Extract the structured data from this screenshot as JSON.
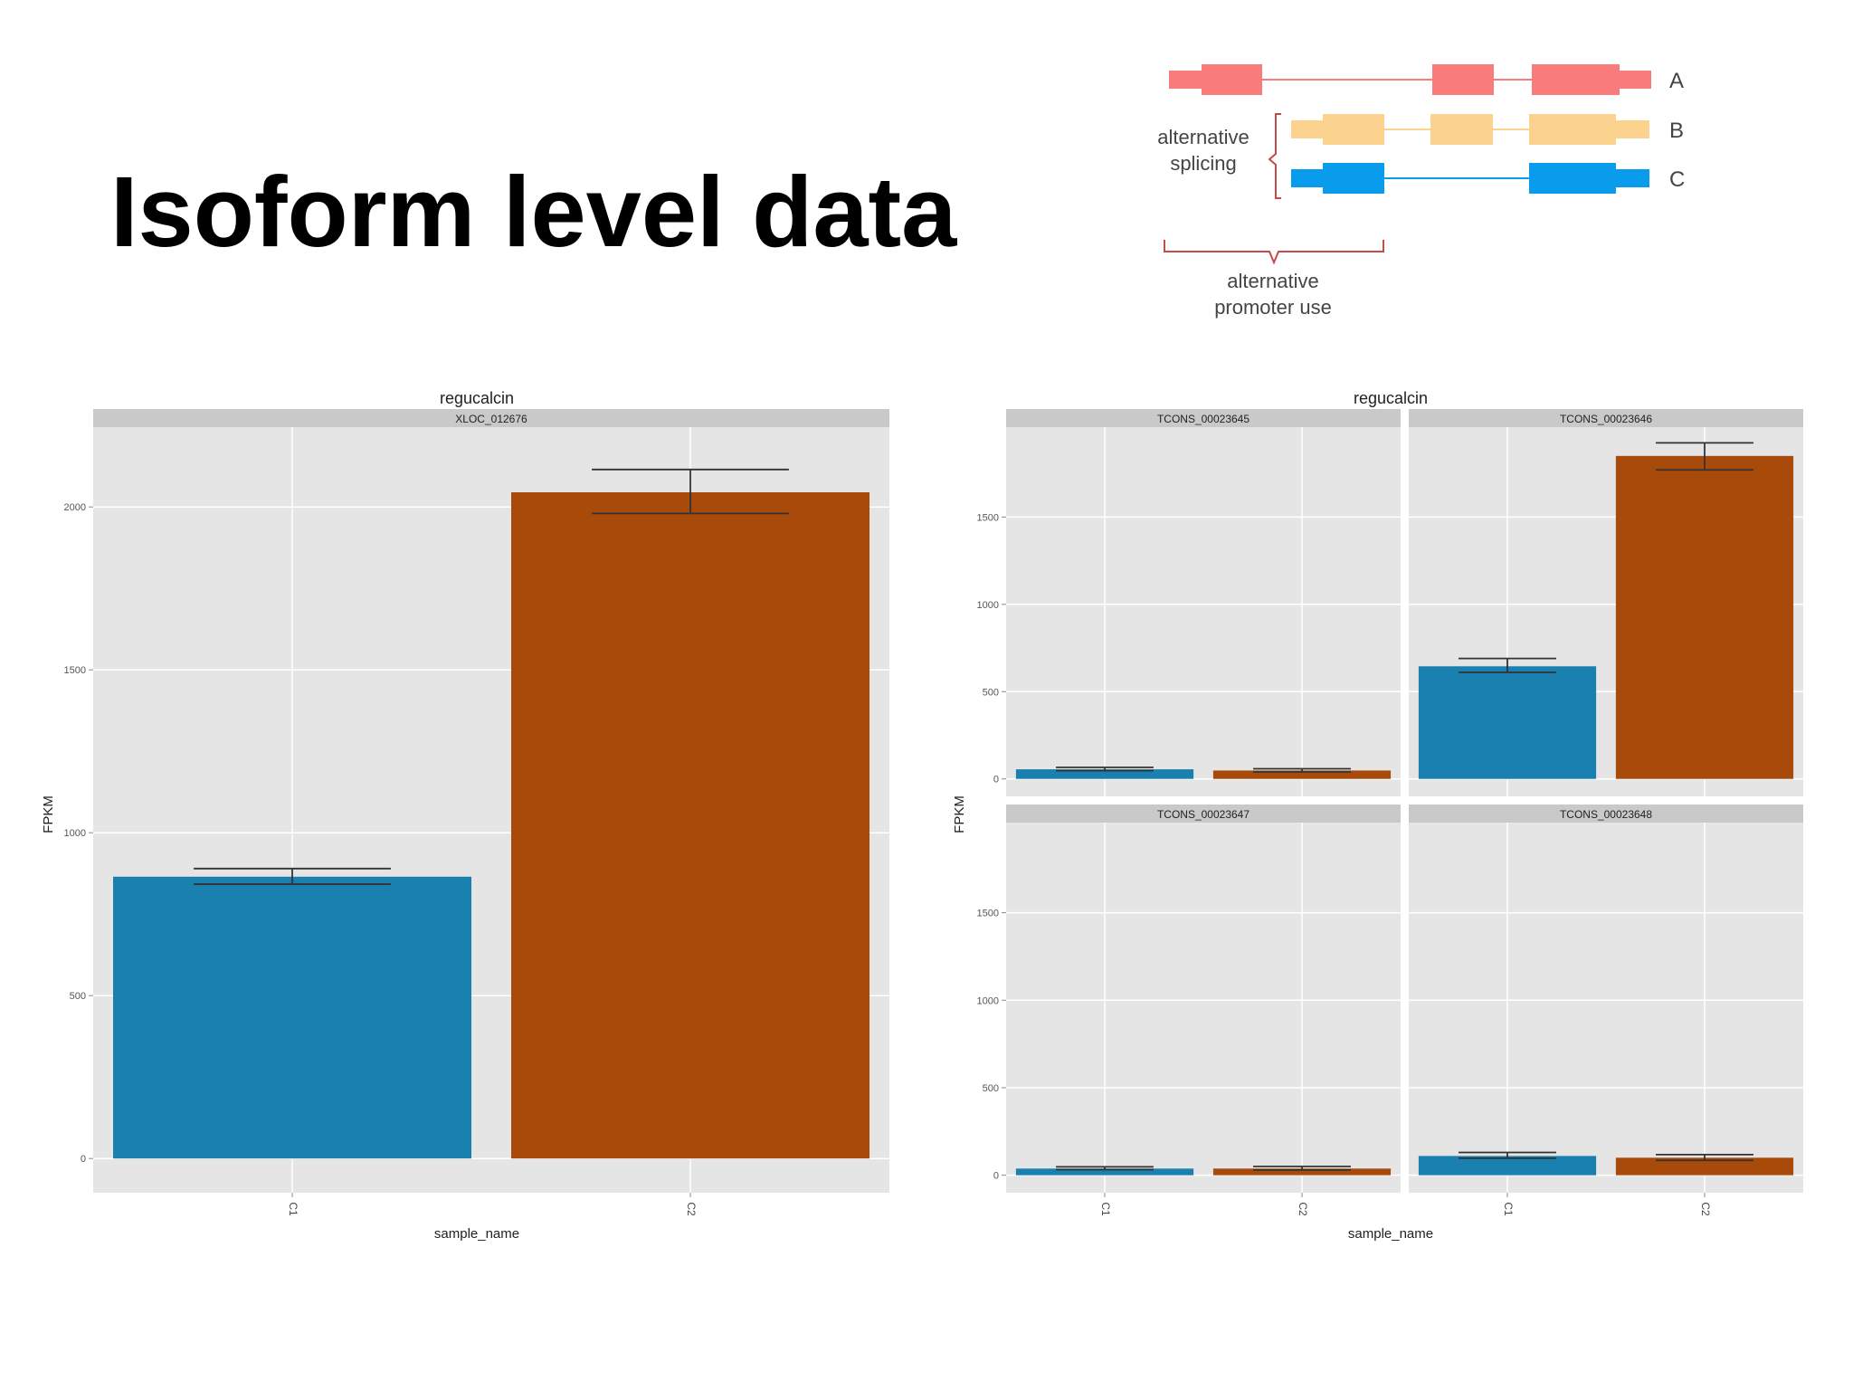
{
  "slide": {
    "title": "Isoform level data"
  },
  "diagram": {
    "isoform_labels": [
      "A",
      "B",
      "C"
    ],
    "splicing_label": [
      "alternative",
      "splicing"
    ],
    "promoter_label": [
      "alternative",
      "promoter use"
    ],
    "colors": {
      "A": "#f97b7b",
      "B": "#fbd38f",
      "C": "#0a9cec",
      "bracket": "#c94848"
    }
  },
  "colors": {
    "C1": "#1980b0",
    "C2": "#a84a09",
    "panel_bg": "#e5e5e5",
    "strip_bg": "#c9c9c9",
    "grid": "#ffffff",
    "error_bar": "#333333"
  },
  "chart_data": [
    {
      "type": "bar",
      "title": "regucalcin",
      "xlabel": "sample_name",
      "ylabel": "FPKM",
      "ylim": [
        -105,
        2245
      ],
      "yticks": [
        0,
        500,
        1000,
        1500,
        2000
      ],
      "grid": true,
      "panels": [
        {
          "strip": "XLOC_012676",
          "categories": [
            "C1",
            "C2"
          ],
          "values": [
            865,
            2045
          ],
          "error_low": [
            842,
            1980
          ],
          "error_high": [
            890,
            2115
          ]
        }
      ]
    },
    {
      "type": "bar",
      "title": "regucalcin",
      "xlabel": "sample_name",
      "ylabel": "FPKM",
      "ylim": [
        -100,
        2015
      ],
      "yticks": [
        0,
        500,
        1000,
        1500
      ],
      "grid": true,
      "panels": [
        {
          "strip": "TCONS_00023645",
          "categories": [
            "C1",
            "C2"
          ],
          "values": [
            55,
            48
          ],
          "error_low": [
            47,
            40
          ],
          "error_high": [
            66,
            58
          ],
          "show_x_ticks": false,
          "show_y_ticks": true
        },
        {
          "strip": "TCONS_00023646",
          "categories": [
            "C1",
            "C2"
          ],
          "values": [
            645,
            1850
          ],
          "error_low": [
            610,
            1770
          ],
          "error_high": [
            690,
            1925
          ],
          "show_x_ticks": false,
          "show_y_ticks": false
        },
        {
          "strip": "TCONS_00023647",
          "categories": [
            "C1",
            "C2"
          ],
          "values": [
            38,
            38
          ],
          "error_low": [
            32,
            30
          ],
          "error_high": [
            48,
            50
          ],
          "show_x_ticks": true,
          "show_y_ticks": true
        },
        {
          "strip": "TCONS_00023648",
          "categories": [
            "C1",
            "C2"
          ],
          "values": [
            110,
            100
          ],
          "error_low": [
            97,
            85
          ],
          "error_high": [
            130,
            118
          ],
          "show_x_ticks": true,
          "show_y_ticks": false
        }
      ]
    }
  ]
}
